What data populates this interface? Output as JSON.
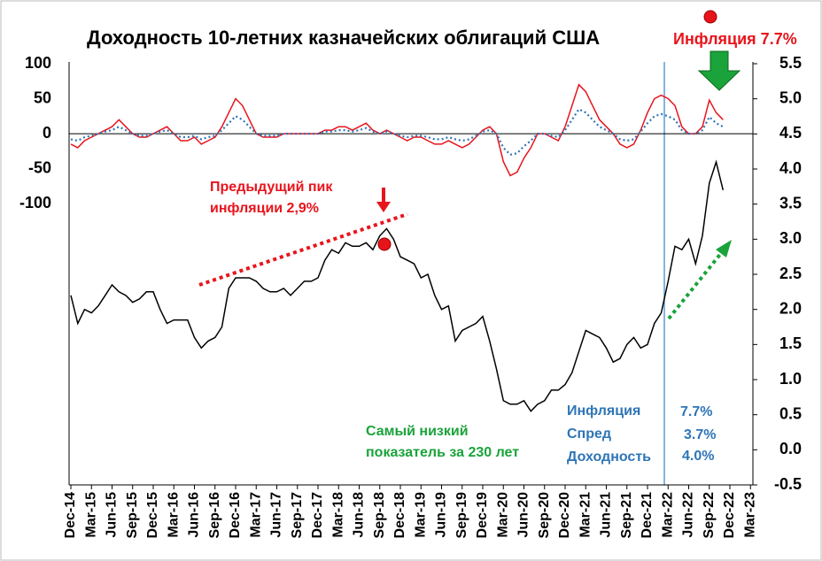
{
  "chart_data": {
    "type": "line",
    "title": "Доходность 10-летних казначейских облигаций США",
    "annotations": {
      "inflation_top": "Инфляция 7.7%",
      "prev_peak_1": "Предыдущий пик",
      "prev_peak_2": "инфляции 2,9%",
      "lowest_1": "Самый низкий",
      "lowest_2": "показатель за 230 лет",
      "box": [
        [
          "Инфляция",
          "7.7%"
        ],
        [
          "Спред",
          "3.7%"
        ],
        [
          "Доходность",
          "4.0%"
        ]
      ]
    },
    "x": [
      "2014-12",
      "2015-01",
      "2015-02",
      "2015-03",
      "2015-04",
      "2015-05",
      "2015-06",
      "2015-07",
      "2015-08",
      "2015-09",
      "2015-10",
      "2015-11",
      "2015-12",
      "2016-01",
      "2016-02",
      "2016-03",
      "2016-04",
      "2016-05",
      "2016-06",
      "2016-07",
      "2016-08",
      "2016-09",
      "2016-10",
      "2016-11",
      "2016-12",
      "2017-01",
      "2017-02",
      "2017-03",
      "2017-04",
      "2017-05",
      "2017-06",
      "2017-07",
      "2017-08",
      "2017-09",
      "2017-10",
      "2017-11",
      "2017-12",
      "2018-01",
      "2018-02",
      "2018-03",
      "2018-04",
      "2018-05",
      "2018-06",
      "2018-07",
      "2018-08",
      "2018-09",
      "2018-10",
      "2018-11",
      "2018-12",
      "2019-01",
      "2019-02",
      "2019-03",
      "2019-04",
      "2019-05",
      "2019-06",
      "2019-07",
      "2019-08",
      "2019-09",
      "2019-10",
      "2019-11",
      "2019-12",
      "2020-01",
      "2020-02",
      "2020-03",
      "2020-04",
      "2020-05",
      "2020-06",
      "2020-07",
      "2020-08",
      "2020-09",
      "2020-10",
      "2020-11",
      "2020-12",
      "2021-01",
      "2021-02",
      "2021-03",
      "2021-04",
      "2021-05",
      "2021-06",
      "2021-07",
      "2021-08",
      "2021-09",
      "2021-10",
      "2021-11",
      "2021-12",
      "2022-01",
      "2022-02",
      "2022-03",
      "2022-04",
      "2022-05",
      "2022-06",
      "2022-07",
      "2022-08",
      "2022-09",
      "2022-10",
      "2022-11"
    ],
    "xlim": [
      "2014-12",
      "2023-03"
    ],
    "xticks": [
      {
        "value": "2014-12",
        "label": "Dec-14"
      },
      {
        "value": "2015-03",
        "label": "Mar-15"
      },
      {
        "value": "2015-06",
        "label": "Jun-15"
      },
      {
        "value": "2015-09",
        "label": "Sep-15"
      },
      {
        "value": "2015-12",
        "label": "Dec-15"
      },
      {
        "value": "2016-03",
        "label": "Mar-16"
      },
      {
        "value": "2016-06",
        "label": "Jun-16"
      },
      {
        "value": "2016-09",
        "label": "Sep-16"
      },
      {
        "value": "2016-12",
        "label": "Dec-16"
      },
      {
        "value": "2017-03",
        "label": "Mar-17"
      },
      {
        "value": "2017-06",
        "label": "Jun-17"
      },
      {
        "value": "2017-09",
        "label": "Sep-17"
      },
      {
        "value": "2017-12",
        "label": "Dec-17"
      },
      {
        "value": "2018-03",
        "label": "Mar-18"
      },
      {
        "value": "2018-06",
        "label": "Jun-18"
      },
      {
        "value": "2018-09",
        "label": "Sep-18"
      },
      {
        "value": "2018-12",
        "label": "Dec-18"
      },
      {
        "value": "2019-03",
        "label": "Mar-19"
      },
      {
        "value": "2019-06",
        "label": "Jun-19"
      },
      {
        "value": "2019-09",
        "label": "Sep-19"
      },
      {
        "value": "2019-12",
        "label": "Dec-19"
      },
      {
        "value": "2020-03",
        "label": "Mar-20"
      },
      {
        "value": "2020-06",
        "label": "Jun-20"
      },
      {
        "value": "2020-09",
        "label": "Sep-20"
      },
      {
        "value": "2020-12",
        "label": "Dec-20"
      },
      {
        "value": "2021-03",
        "label": "Mar-21"
      },
      {
        "value": "2021-06",
        "label": "Jun-21"
      },
      {
        "value": "2021-09",
        "label": "Sep-21"
      },
      {
        "value": "2021-12",
        "label": "Dec-21"
      },
      {
        "value": "2022-03",
        "label": "Mar-22"
      },
      {
        "value": "2022-06",
        "label": "Jun-22"
      },
      {
        "value": "2022-09",
        "label": "Sep-22"
      },
      {
        "value": "2022-12",
        "label": "Dec-22"
      },
      {
        "value": "2023-03",
        "label": "Mar-23"
      }
    ],
    "ylim": [
      -502,
      100
    ],
    "yticks": [
      100,
      50,
      0,
      -50,
      -100
    ],
    "y2lim": [
      -0.5,
      5.5
    ],
    "y2ticks": [
      {
        "value": 5.5,
        "label": "5.5"
      },
      {
        "value": 5,
        "label": "5.0"
      },
      {
        "value": 4.5,
        "label": "4.5"
      },
      {
        "value": 4,
        "label": "4.0"
      },
      {
        "value": 3.5,
        "label": "3.5"
      },
      {
        "value": 3,
        "label": "3.0"
      },
      {
        "value": 2.5,
        "label": "2.5"
      },
      {
        "value": 2,
        "label": "2.0"
      },
      {
        "value": 1.5,
        "label": "1.5"
      },
      {
        "value": 1,
        "label": "1.0"
      },
      {
        "value": 0.5,
        "label": "0.5"
      },
      {
        "value": 0,
        "label": "0.0"
      },
      {
        "value": -0.5,
        "label": "-0.5"
      }
    ],
    "series": [
      {
        "color": "#e8141c",
        "dash": false,
        "values": [
          -15,
          -20,
          -10,
          -5,
          0,
          5,
          10,
          20,
          10,
          0,
          -5,
          -5,
          0,
          5,
          10,
          0,
          -10,
          -10,
          -5,
          -15,
          -10,
          -5,
          10,
          30,
          50,
          40,
          20,
          0,
          -5,
          -5,
          -5,
          0,
          0,
          0,
          0,
          0,
          0,
          5,
          5,
          10,
          10,
          5,
          10,
          15,
          5,
          0,
          5,
          0,
          -5,
          -10,
          -5,
          -5,
          -10,
          -15,
          -15,
          -10,
          -15,
          -20,
          -15,
          -5,
          5,
          10,
          0,
          -40,
          -60,
          -55,
          -35,
          -20,
          0,
          0,
          -5,
          -10,
          10,
          40,
          70,
          60,
          40,
          20,
          10,
          0,
          -15,
          -20,
          -15,
          5,
          30,
          50,
          55,
          50,
          40,
          10,
          0,
          0,
          10,
          48,
          30,
          20
        ]
      },
      {
        "color": "#2e75b6",
        "dash": true,
        "values": [
          -8,
          -10,
          -5,
          -3,
          0,
          3,
          5,
          10,
          5,
          0,
          -3,
          -3,
          0,
          3,
          5,
          0,
          -5,
          -5,
          -3,
          -8,
          -5,
          -3,
          5,
          15,
          25,
          20,
          10,
          0,
          -3,
          -3,
          -3,
          0,
          0,
          0,
          0,
          0,
          0,
          3,
          3,
          5,
          5,
          3,
          5,
          8,
          3,
          0,
          3,
          0,
          -3,
          -5,
          -3,
          -3,
          -5,
          -8,
          -8,
          -5,
          -8,
          -10,
          -8,
          -3,
          3,
          5,
          0,
          -20,
          -30,
          -28,
          -18,
          -10,
          0,
          0,
          -3,
          -5,
          5,
          20,
          35,
          30,
          20,
          10,
          5,
          0,
          -8,
          -10,
          -8,
          3,
          15,
          25,
          28,
          25,
          20,
          5,
          0,
          0,
          5,
          24,
          15,
          10
        ]
      },
      {
        "color": "#000000",
        "dash": false,
        "axis": "y2",
        "values": [
          2.2,
          1.8,
          2.0,
          1.95,
          2.05,
          2.2,
          2.35,
          2.25,
          2.2,
          2.1,
          2.15,
          2.25,
          2.25,
          2.0,
          1.8,
          1.85,
          1.85,
          1.85,
          1.6,
          1.45,
          1.55,
          1.6,
          1.75,
          2.3,
          2.45,
          2.45,
          2.45,
          2.4,
          2.3,
          2.25,
          2.25,
          2.3,
          2.2,
          2.3,
          2.4,
          2.4,
          2.45,
          2.7,
          2.85,
          2.8,
          2.95,
          2.9,
          2.9,
          2.95,
          2.85,
          3.05,
          3.15,
          3.0,
          2.75,
          2.7,
          2.65,
          2.45,
          2.5,
          2.2,
          2.0,
          2.05,
          1.55,
          1.7,
          1.75,
          1.8,
          1.9,
          1.55,
          1.15,
          0.7,
          0.65,
          0.65,
          0.7,
          0.55,
          0.65,
          0.7,
          0.85,
          0.85,
          0.93,
          1.1,
          1.4,
          1.7,
          1.65,
          1.6,
          1.45,
          1.25,
          1.3,
          1.5,
          1.6,
          1.45,
          1.5,
          1.8,
          1.95,
          2.4,
          2.9,
          2.85,
          3.0,
          2.65,
          3.05,
          3.8,
          4.1,
          3.7
        ]
      }
    ]
  }
}
